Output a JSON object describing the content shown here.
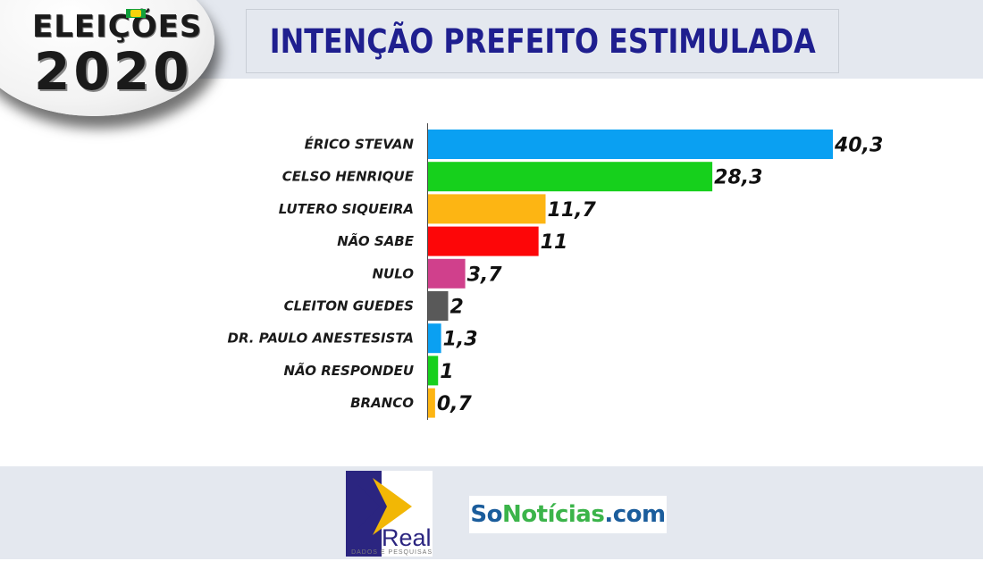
{
  "header": {
    "badge_line1": "ELEIÇÕES",
    "badge_line2": "2020",
    "title": "INTENÇÃO PREFEITO ESTIMULADA"
  },
  "chart_data": {
    "type": "bar",
    "orientation": "horizontal",
    "title": "INTENÇÃO PREFEITO ESTIMULADA",
    "categories": [
      "ÉRICO STEVAN",
      "CELSO HENRIQUE",
      "LUTERO SIQUEIRA",
      "NÃO SABE",
      "NULO",
      "CLEITON GUEDES",
      "DR. PAULO ANESTESISTA",
      "NÃO RESPONDEU",
      "BRANCO"
    ],
    "values": [
      40.3,
      28.3,
      11.7,
      11,
      3.7,
      2,
      1.3,
      1,
      0.7
    ],
    "value_labels": [
      "40,3",
      "28,3",
      "11,7",
      "11",
      "3,7",
      "2",
      "1,3",
      "1",
      "0,7"
    ],
    "colors": [
      "#0aa0f2",
      "#16d01c",
      "#fdb513",
      "#fd0608",
      "#d0408c",
      "#595959",
      "#0aa0f2",
      "#16d01c",
      "#fdb513"
    ],
    "xlim": [
      0,
      40.3
    ],
    "grid": false,
    "legend": "none"
  },
  "footer": {
    "real_logo_text": "Real",
    "real_logo_subtext": "DADOS E PESQUISAS",
    "sonoticias_so": "So",
    "sonoticias_noticias": "Notícias",
    "sonoticias_com": ".com"
  }
}
